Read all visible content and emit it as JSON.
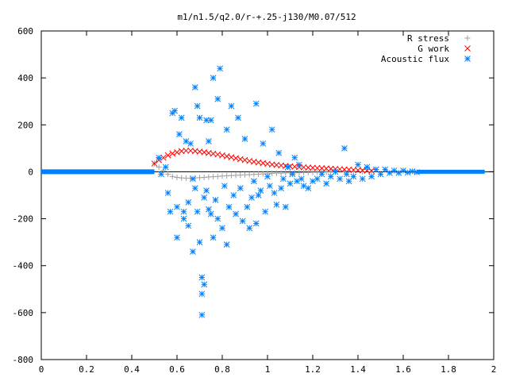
{
  "chart_data": {
    "type": "scatter",
    "title": "m1/n1.5/q2.0/r-+.25-j130/M0.07/512",
    "xlabel": "",
    "ylabel": "",
    "xlim": [
      0,
      2
    ],
    "ylim": [
      -800,
      600
    ],
    "xticks": [
      0,
      0.2,
      0.4,
      0.6,
      0.8,
      1,
      1.2,
      1.4,
      1.6,
      1.8,
      2
    ],
    "xtick_labels": [
      "0",
      "0.2",
      "0.4",
      "0.6",
      "0.8",
      "1",
      "1.2",
      "1.4",
      "1.6",
      "1.8",
      "2"
    ],
    "yticks": [
      -800,
      -600,
      -400,
      -200,
      0,
      200,
      400,
      600
    ],
    "ytick_labels": [
      "-800",
      "-600",
      "-400",
      "-200",
      "0",
      "200",
      "400",
      "600"
    ],
    "grid": false,
    "legend_position": "top-right",
    "series": [
      {
        "name": "R stress",
        "marker": "+",
        "color": "#a0a0a0",
        "points": [
          [
            0.5,
            35
          ],
          [
            0.52,
            20
          ],
          [
            0.54,
            5
          ],
          [
            0.56,
            -10
          ],
          [
            0.58,
            -20
          ],
          [
            0.6,
            -24
          ],
          [
            0.62,
            -26
          ],
          [
            0.64,
            -27
          ],
          [
            0.66,
            -27
          ],
          [
            0.68,
            -26
          ],
          [
            0.7,
            -25
          ],
          [
            0.72,
            -24
          ],
          [
            0.74,
            -22
          ],
          [
            0.76,
            -21
          ],
          [
            0.78,
            -20
          ],
          [
            0.8,
            -18
          ],
          [
            0.82,
            -17
          ],
          [
            0.84,
            -16
          ],
          [
            0.86,
            -15
          ],
          [
            0.88,
            -14
          ],
          [
            0.9,
            -13
          ],
          [
            0.92,
            -12
          ],
          [
            0.94,
            -11
          ],
          [
            0.96,
            -10
          ],
          [
            0.98,
            -9
          ],
          [
            1.0,
            -8
          ],
          [
            1.02,
            -7
          ],
          [
            1.04,
            -6
          ],
          [
            1.06,
            -6
          ],
          [
            1.08,
            -5
          ],
          [
            1.1,
            -5
          ],
          [
            1.12,
            -4
          ],
          [
            1.14,
            -4
          ],
          [
            1.16,
            -3
          ],
          [
            1.18,
            -3
          ],
          [
            1.2,
            -2
          ],
          [
            1.22,
            -2
          ],
          [
            1.24,
            -2
          ],
          [
            1.26,
            -1
          ],
          [
            1.28,
            -1
          ],
          [
            1.3,
            -1
          ],
          [
            1.34,
            0
          ],
          [
            1.38,
            0
          ],
          [
            1.42,
            0
          ],
          [
            1.46,
            0
          ]
        ]
      },
      {
        "name": "G work",
        "marker": "x",
        "color": "#ff0000",
        "points": [
          [
            0.5,
            35
          ],
          [
            0.52,
            50
          ],
          [
            0.54,
            60
          ],
          [
            0.56,
            70
          ],
          [
            0.58,
            78
          ],
          [
            0.6,
            83
          ],
          [
            0.62,
            88
          ],
          [
            0.64,
            90
          ],
          [
            0.66,
            90
          ],
          [
            0.68,
            88
          ],
          [
            0.7,
            86
          ],
          [
            0.72,
            83
          ],
          [
            0.74,
            80
          ],
          [
            0.76,
            77
          ],
          [
            0.78,
            74
          ],
          [
            0.8,
            70
          ],
          [
            0.82,
            66
          ],
          [
            0.84,
            62
          ],
          [
            0.86,
            58
          ],
          [
            0.88,
            54
          ],
          [
            0.9,
            50
          ],
          [
            0.92,
            46
          ],
          [
            0.94,
            43
          ],
          [
            0.96,
            40
          ],
          [
            0.98,
            37
          ],
          [
            1.0,
            34
          ],
          [
            1.02,
            31
          ],
          [
            1.04,
            29
          ],
          [
            1.06,
            27
          ],
          [
            1.08,
            25
          ],
          [
            1.1,
            23
          ],
          [
            1.12,
            22
          ],
          [
            1.14,
            20
          ],
          [
            1.16,
            19
          ],
          [
            1.18,
            18
          ],
          [
            1.2,
            17
          ],
          [
            1.22,
            16
          ],
          [
            1.24,
            15
          ],
          [
            1.26,
            14
          ],
          [
            1.28,
            13
          ],
          [
            1.3,
            12
          ],
          [
            1.32,
            11
          ],
          [
            1.34,
            10
          ],
          [
            1.36,
            9
          ],
          [
            1.38,
            8
          ],
          [
            1.4,
            7
          ],
          [
            1.42,
            6
          ],
          [
            1.44,
            5
          ],
          [
            1.46,
            4
          ]
        ]
      },
      {
        "name": "Acoustic flux",
        "marker": "*",
        "color": "#0080ff",
        "points": [
          [
            0.52,
            60
          ],
          [
            0.53,
            -10
          ],
          [
            0.55,
            20
          ],
          [
            0.56,
            -90
          ],
          [
            0.57,
            -170
          ],
          [
            0.58,
            250
          ],
          [
            0.59,
            260
          ],
          [
            0.6,
            -280
          ],
          [
            0.6,
            -150
          ],
          [
            0.61,
            160
          ],
          [
            0.62,
            230
          ],
          [
            0.63,
            -170
          ],
          [
            0.63,
            -200
          ],
          [
            0.64,
            130
          ],
          [
            0.65,
            -130
          ],
          [
            0.65,
            -230
          ],
          [
            0.66,
            120
          ],
          [
            0.67,
            -340
          ],
          [
            0.67,
            -30
          ],
          [
            0.68,
            360
          ],
          [
            0.68,
            -70
          ],
          [
            0.69,
            280
          ],
          [
            0.69,
            -170
          ],
          [
            0.7,
            230
          ],
          [
            0.7,
            -300
          ],
          [
            0.71,
            -520
          ],
          [
            0.71,
            -450
          ],
          [
            0.72,
            -480
          ],
          [
            0.71,
            -610
          ],
          [
            0.72,
            -110
          ],
          [
            0.73,
            220
          ],
          [
            0.73,
            -80
          ],
          [
            0.74,
            130
          ],
          [
            0.74,
            -160
          ],
          [
            0.75,
            -180
          ],
          [
            0.75,
            220
          ],
          [
            0.76,
            400
          ],
          [
            0.76,
            -280
          ],
          [
            0.77,
            -120
          ],
          [
            0.78,
            310
          ],
          [
            0.78,
            -200
          ],
          [
            0.79,
            440
          ],
          [
            0.8,
            -240
          ],
          [
            0.81,
            -60
          ],
          [
            0.82,
            180
          ],
          [
            0.82,
            -310
          ],
          [
            0.83,
            -150
          ],
          [
            0.84,
            280
          ],
          [
            0.85,
            -100
          ],
          [
            0.86,
            -180
          ],
          [
            0.87,
            230
          ],
          [
            0.88,
            -70
          ],
          [
            0.89,
            -210
          ],
          [
            0.9,
            140
          ],
          [
            0.91,
            -150
          ],
          [
            0.92,
            -240
          ],
          [
            0.93,
            -110
          ],
          [
            0.94,
            -40
          ],
          [
            0.95,
            290
          ],
          [
            0.95,
            -220
          ],
          [
            0.96,
            -100
          ],
          [
            0.97,
            -80
          ],
          [
            0.98,
            120
          ],
          [
            0.99,
            -170
          ],
          [
            1.0,
            -20
          ],
          [
            1.01,
            -60
          ],
          [
            1.02,
            180
          ],
          [
            1.03,
            -90
          ],
          [
            1.04,
            -140
          ],
          [
            1.05,
            80
          ],
          [
            1.06,
            -70
          ],
          [
            1.07,
            -30
          ],
          [
            1.08,
            -150
          ],
          [
            1.09,
            20
          ],
          [
            1.1,
            -50
          ],
          [
            1.11,
            -10
          ],
          [
            1.12,
            60
          ],
          [
            1.13,
            -40
          ],
          [
            1.14,
            30
          ],
          [
            1.15,
            -30
          ],
          [
            1.16,
            -60
          ],
          [
            1.18,
            -70
          ],
          [
            1.2,
            -40
          ],
          [
            1.22,
            -30
          ],
          [
            1.24,
            -10
          ],
          [
            1.26,
            -50
          ],
          [
            1.28,
            -20
          ],
          [
            1.3,
            0
          ],
          [
            1.32,
            -30
          ],
          [
            1.34,
            100
          ],
          [
            1.35,
            -10
          ],
          [
            1.36,
            -40
          ],
          [
            1.38,
            -20
          ],
          [
            1.4,
            30
          ],
          [
            1.42,
            -30
          ],
          [
            1.44,
            20
          ],
          [
            1.46,
            -20
          ],
          [
            1.48,
            10
          ],
          [
            1.5,
            -10
          ],
          [
            1.52,
            10
          ],
          [
            1.54,
            -5
          ],
          [
            1.56,
            5
          ],
          [
            1.58,
            -5
          ],
          [
            1.6,
            5
          ],
          [
            1.62,
            -3
          ],
          [
            1.64,
            2
          ],
          [
            1.66,
            -2
          ]
        ]
      }
    ]
  }
}
